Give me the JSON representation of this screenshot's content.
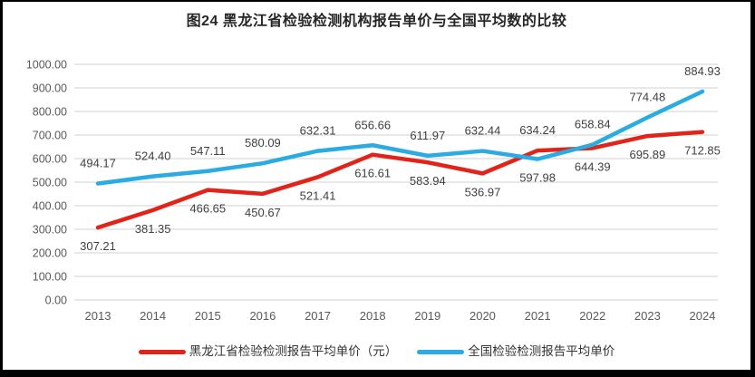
{
  "title": "图24 黑龙江省检验检测机构报告单价与全国平均数的比较",
  "colors": {
    "heilongjiang_line": "#e2231a",
    "national_line": "#2aace2",
    "gridline": "#d9d9d9",
    "axis_tick_label": "#595959",
    "data_label": "#404040",
    "frame_border": "#000000"
  },
  "chart_data": {
    "type": "line",
    "categories": [
      "2013",
      "2014",
      "2015",
      "2016",
      "2017",
      "2018",
      "2019",
      "2020",
      "2021",
      "2022",
      "2023",
      "2024"
    ],
    "series": [
      {
        "name": "黑龙江省检验检测报告平均单价（元）",
        "color": "#e2231a",
        "values": [
          307.21,
          381.35,
          466.65,
          450.67,
          521.41,
          616.61,
          583.94,
          536.97,
          634.24,
          644.39,
          695.89,
          712.85
        ]
      },
      {
        "name": "全国检验检测报告平均单价",
        "color": "#2aace2",
        "values": [
          494.17,
          524.4,
          547.11,
          580.09,
          632.31,
          656.66,
          611.97,
          632.44,
          597.98,
          658.84,
          774.48,
          884.93
        ]
      }
    ],
    "ylim": [
      0,
      1000
    ],
    "ytick_step": 100,
    "ytick_labels": [
      "0.00",
      "100.00",
      "200.00",
      "300.00",
      "400.00",
      "500.00",
      "600.00",
      "700.00",
      "800.00",
      "900.00",
      "1000.00"
    ],
    "grid": true,
    "data_labels": true,
    "legend_position": "bottom"
  }
}
